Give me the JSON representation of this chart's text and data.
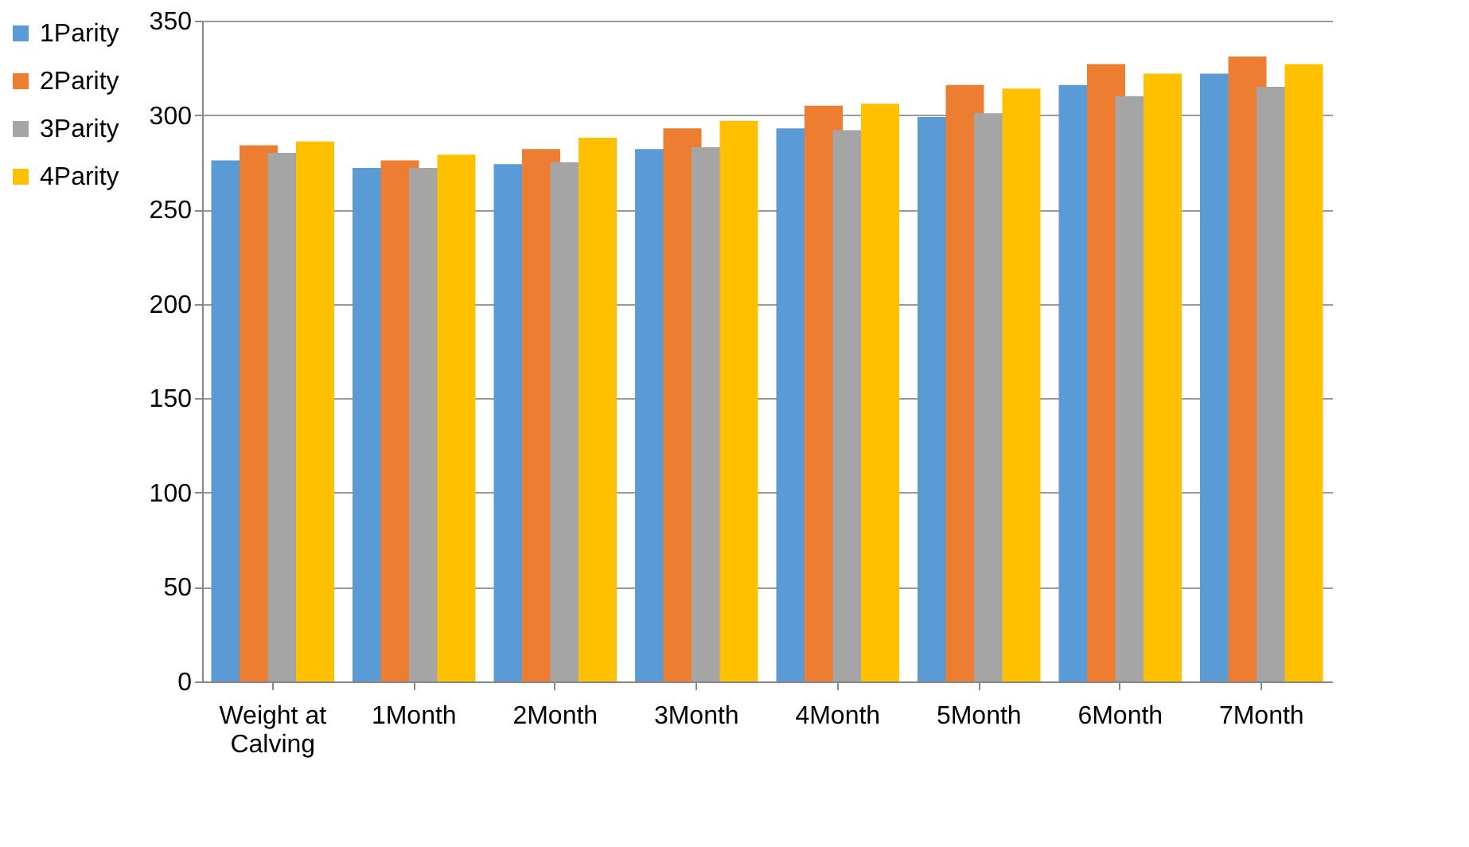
{
  "chart_data": {
    "type": "bar",
    "categories": [
      "Weight at Calving",
      "1Month",
      "2Month",
      "3Month",
      "4Month",
      "5Month",
      "6Month",
      "7Month"
    ],
    "series": [
      {
        "name": "1Parity",
        "color": "#5b9bd5",
        "values": [
          276,
          272,
          274,
          282,
          293,
          299,
          316,
          322
        ]
      },
      {
        "name": "2Parity",
        "color": "#ed7d31",
        "values": [
          284,
          276,
          282,
          293,
          305,
          316,
          327,
          331
        ]
      },
      {
        "name": "3Parity",
        "color": "#a5a5a5",
        "values": [
          280,
          272,
          275,
          283,
          292,
          301,
          310,
          315
        ]
      },
      {
        "name": "4Parity",
        "color": "#ffc000",
        "values": [
          286,
          279,
          288,
          297,
          306,
          314,
          322,
          327
        ]
      }
    ],
    "ylim": [
      0,
      350
    ],
    "yticks": [
      0,
      50,
      100,
      150,
      200,
      250,
      300,
      350
    ],
    "grid": "y",
    "legend": "left"
  }
}
